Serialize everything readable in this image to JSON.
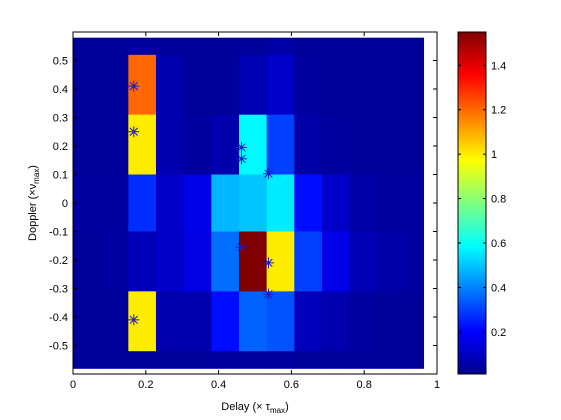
{
  "chart_data": {
    "type": "heatmap",
    "xlabel": "Delay (× τ",
    "xlabel_sub": "max",
    "xlabel_close": ")",
    "ylabel": "Doppler (×ν",
    "ylabel_sub": "max",
    "ylabel_close": ")",
    "xlim": [
      0,
      1
    ],
    "ylim": [
      -0.6,
      0.6
    ],
    "x_ticks": [
      0,
      0.2,
      0.4,
      0.6,
      0.8,
      1
    ],
    "x_tick_labels": [
      "0",
      "0.2",
      "0.4",
      "0.6",
      "0.8",
      "1"
    ],
    "y_ticks": [
      0.5,
      0.4,
      0.3,
      0.2,
      0.1,
      0,
      -0.1,
      -0.2,
      -0.3,
      -0.4,
      -0.5
    ],
    "y_tick_labels": [
      "0.5",
      "0.4",
      "0.3",
      "0.2",
      "0.1",
      "0",
      "-0.1",
      "-0.2",
      "-0.3",
      "-0.4",
      "-0.5"
    ],
    "x_edges": [
      0,
      0.076,
      0.152,
      0.228,
      0.304,
      0.38,
      0.456,
      0.532,
      0.608,
      0.684,
      0.76,
      0.836,
      0.912,
      0.963
    ],
    "y_edges": [
      0.58,
      0.52,
      0.31,
      0.1,
      -0.1,
      -0.31,
      -0.52,
      -0.58
    ],
    "grid": [
      [
        0.05,
        0.05,
        0.06,
        0.05,
        0.05,
        0.05,
        0.05,
        0.07,
        0.05,
        0.05,
        0.05,
        0.05,
        0.05
      ],
      [
        0.05,
        0.05,
        1.2,
        0.08,
        0.05,
        0.05,
        0.09,
        0.12,
        0.06,
        0.05,
        0.05,
        0.05,
        0.05
      ],
      [
        0.05,
        0.05,
        1.0,
        0.08,
        0.06,
        0.08,
        0.58,
        0.3,
        0.07,
        0.06,
        0.05,
        0.05,
        0.05
      ],
      [
        0.06,
        0.06,
        0.27,
        0.12,
        0.17,
        0.48,
        0.5,
        0.56,
        0.22,
        0.12,
        0.07,
        0.06,
        0.06
      ],
      [
        0.05,
        0.06,
        0.1,
        0.12,
        0.16,
        0.37,
        1.55,
        1.0,
        0.3,
        0.17,
        0.09,
        0.07,
        0.06
      ],
      [
        0.05,
        0.05,
        1.0,
        0.08,
        0.08,
        0.22,
        0.35,
        0.33,
        0.1,
        0.08,
        0.06,
        0.05,
        0.05
      ],
      [
        0.05,
        0.05,
        0.05,
        0.05,
        0.05,
        0.06,
        0.06,
        0.06,
        0.05,
        0.05,
        0.05,
        0.05,
        0.05
      ]
    ],
    "points": [
      {
        "x": 0.167,
        "y": 0.41
      },
      {
        "x": 0.167,
        "y": 0.25
      },
      {
        "x": 0.167,
        "y": -0.41
      },
      {
        "x": 0.463,
        "y": 0.195
      },
      {
        "x": 0.463,
        "y": 0.155
      },
      {
        "x": 0.537,
        "y": 0.103
      },
      {
        "x": 0.463,
        "y": -0.155
      },
      {
        "x": 0.537,
        "y": -0.21
      },
      {
        "x": 0.537,
        "y": -0.32
      }
    ],
    "colorbar": {
      "range": [
        0.01,
        1.55
      ],
      "ticks": [
        0.2,
        0.4,
        0.6,
        0.8,
        1,
        1.2,
        1.4
      ],
      "tick_labels": [
        "0.2",
        "0.4",
        "0.6",
        "0.8",
        "1",
        "1.2",
        "1.4"
      ]
    },
    "grid_lines": false,
    "colormap": "jet",
    "marker_color": "#1a1ac8"
  }
}
